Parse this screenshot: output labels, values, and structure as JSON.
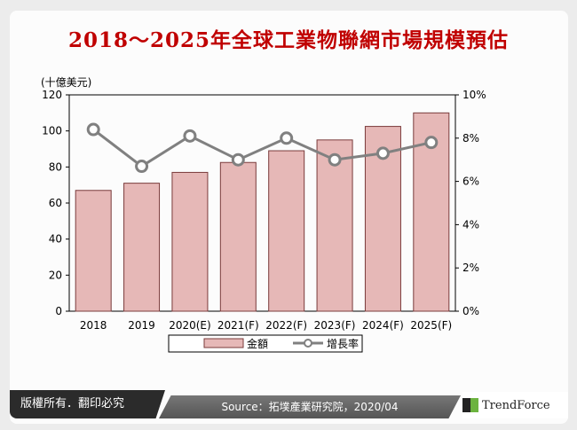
{
  "title": "2018～2025年全球工業物聯網市場規模預估",
  "footer": {
    "copyright": "版權所有．翻印必究",
    "source": "Source：拓墣產業研究院，2020/04",
    "logo": "TrendForce"
  },
  "chart_data": {
    "type": "bar+line",
    "categories": [
      "2018",
      "2019",
      "2020(E)",
      "2021(F)",
      "2022(F)",
      "2023(F)",
      "2024(F)",
      "2025(F)"
    ],
    "y_unit_label": "(十億美元)",
    "ylim": [
      0,
      120
    ],
    "yticks": [
      "0",
      "20",
      "40",
      "60",
      "80",
      "100",
      "120"
    ],
    "y2lim": [
      0,
      10
    ],
    "y2ticks": [
      "0%",
      "2%",
      "4%",
      "6%",
      "8%",
      "10%"
    ],
    "series": [
      {
        "name": "金額",
        "type": "bar",
        "axis": "left",
        "color": "#e6b8b7",
        "values": [
          67,
          71,
          77,
          82.5,
          89,
          95,
          102.5,
          110
        ]
      },
      {
        "name": "增長率",
        "type": "line",
        "axis": "right",
        "color": "#808080",
        "values": [
          8.4,
          6.7,
          8.1,
          7.0,
          8.0,
          7.0,
          7.3,
          7.8
        ]
      }
    ],
    "legend": "bottom",
    "grid": false
  }
}
